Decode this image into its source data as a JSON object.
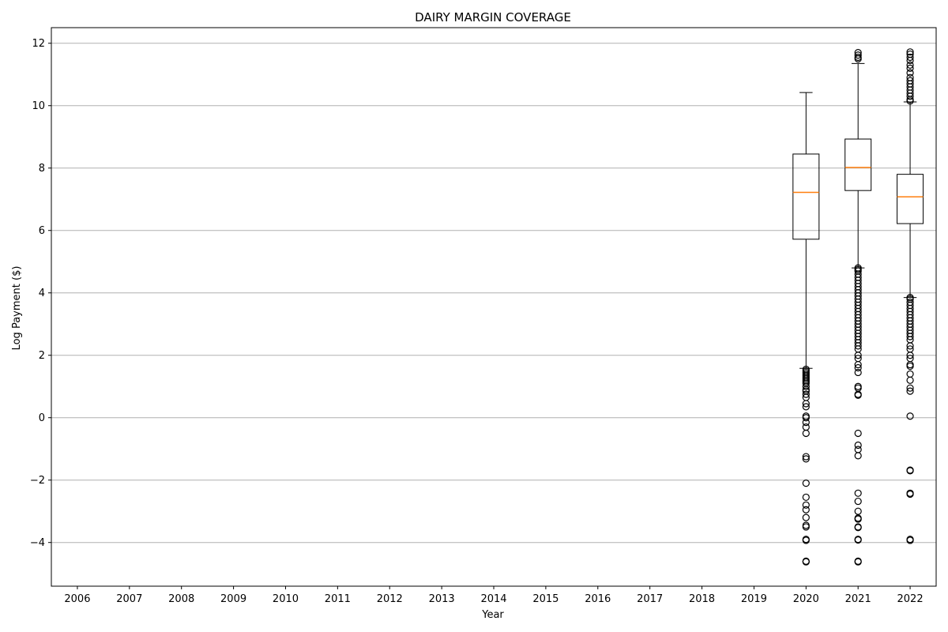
{
  "chart_data": {
    "type": "box",
    "title": "DAIRY MARGIN COVERAGE",
    "xlabel": "Year",
    "ylabel": "Log Payment ($)",
    "categories": [
      "2006",
      "2007",
      "2008",
      "2009",
      "2010",
      "2011",
      "2012",
      "2013",
      "2014",
      "2015",
      "2016",
      "2017",
      "2018",
      "2019",
      "2020",
      "2021",
      "2022"
    ],
    "ylim": [
      -5.4,
      12.5
    ],
    "yticks": [
      -4,
      -2,
      0,
      2,
      4,
      6,
      8,
      10,
      12
    ],
    "ytick_labels": [
      "−4",
      "−2",
      "0",
      "2",
      "4",
      "6",
      "8",
      "10",
      "12"
    ],
    "grid": "y",
    "colors": {
      "box": "#000000",
      "median": "#ff7f0e",
      "grid": "#b0b0b0"
    },
    "boxes": [
      {
        "category": "2020",
        "whisker_low": 1.58,
        "q1": 5.72,
        "median": 7.22,
        "q3": 8.45,
        "whisker_high": 10.42,
        "outliers": [
          1.55,
          1.5,
          1.45,
          1.4,
          1.35,
          1.3,
          1.25,
          1.2,
          1.15,
          1.1,
          1.0,
          0.9,
          0.85,
          0.75,
          0.65,
          0.45,
          0.35,
          0.05,
          0.0,
          -0.15,
          -0.3,
          -0.5,
          -1.25,
          -1.32,
          -2.1,
          -2.55,
          -2.8,
          -2.95,
          -3.2,
          -3.45,
          -3.5,
          -3.9,
          -3.93,
          -4.6,
          -4.62
        ]
      },
      {
        "category": "2021",
        "whisker_low": 4.8,
        "q1": 7.28,
        "median": 8.02,
        "q3": 8.93,
        "whisker_high": 11.35,
        "outliers": [
          11.7,
          11.62,
          11.55,
          11.5,
          4.8,
          4.75,
          4.7,
          4.6,
          4.5,
          4.4,
          4.3,
          4.2,
          4.1,
          4.0,
          3.9,
          3.8,
          3.7,
          3.6,
          3.5,
          3.4,
          3.3,
          3.2,
          3.1,
          3.0,
          2.9,
          2.8,
          2.7,
          2.6,
          2.5,
          2.4,
          2.3,
          2.2,
          2.0,
          1.9,
          1.7,
          1.6,
          1.45,
          1.0,
          0.95,
          0.75,
          0.72,
          -0.5,
          -0.88,
          -1.02,
          -1.22,
          -2.42,
          -2.68,
          -3.0,
          -3.22,
          -3.25,
          -3.5,
          -3.52,
          -3.9,
          -3.92,
          -4.6,
          -4.62
        ]
      },
      {
        "category": "2022",
        "whisker_low": 3.85,
        "q1": 6.22,
        "median": 7.08,
        "q3": 7.8,
        "whisker_high": 10.12,
        "outliers": [
          11.72,
          11.65,
          11.55,
          11.45,
          11.3,
          11.2,
          11.05,
          10.9,
          10.8,
          10.7,
          10.6,
          10.5,
          10.4,
          10.3,
          10.2,
          10.15,
          3.85,
          3.8,
          3.7,
          3.6,
          3.5,
          3.4,
          3.3,
          3.2,
          3.1,
          3.0,
          2.9,
          2.8,
          2.7,
          2.6,
          2.5,
          2.3,
          2.2,
          2.0,
          1.9,
          1.7,
          1.65,
          1.4,
          1.2,
          0.95,
          0.85,
          0.05,
          -1.68,
          -1.7,
          -2.42,
          -2.45,
          -3.9,
          -3.93
        ]
      }
    ]
  }
}
